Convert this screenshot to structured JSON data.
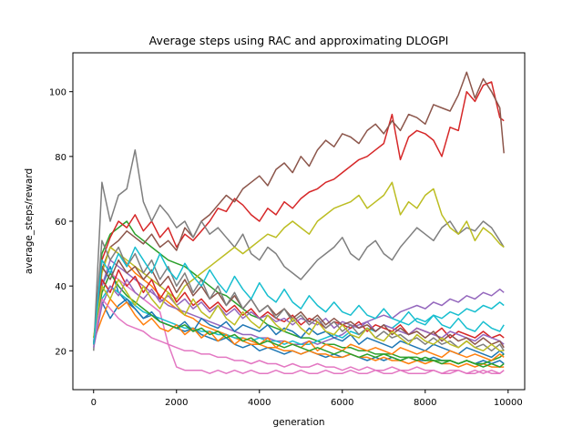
{
  "chart_data": {
    "type": "line",
    "title": "Average steps using RAC and approximating DLOGPI",
    "xlabel": "generation",
    "ylabel": "average_steps/reward",
    "xlim": [
      -500,
      10400
    ],
    "ylim": [
      8,
      112
    ],
    "xticks": [
      0,
      2000,
      4000,
      6000,
      8000,
      10000
    ],
    "yticks": [
      20,
      40,
      60,
      80,
      100
    ],
    "grid": false,
    "legend": "none",
    "x": [
      0,
      200,
      400,
      600,
      800,
      1000,
      1200,
      1400,
      1600,
      1800,
      2000,
      2200,
      2400,
      2600,
      2800,
      3000,
      3200,
      3400,
      3600,
      3800,
      4000,
      4200,
      4400,
      4600,
      4800,
      5000,
      5200,
      5400,
      5600,
      5800,
      6000,
      6200,
      6400,
      6600,
      6800,
      7000,
      7200,
      7400,
      7600,
      7800,
      8000,
      8200,
      8400,
      8600,
      8800,
      9000,
      9200,
      9400,
      9600,
      9800,
      9900
    ],
    "colors": [
      "#1f77b4",
      "#ff7f0e",
      "#2ca02c",
      "#d62728",
      "#9467bd",
      "#8c564b",
      "#e377c2",
      "#7f7f7f",
      "#bcbd22",
      "#17becf"
    ],
    "series": [
      {
        "values": [
          22,
          40,
          46,
          38,
          35,
          33,
          30,
          31,
          29,
          28,
          27,
          26,
          27,
          25,
          24,
          23,
          24,
          22,
          21,
          22,
          20,
          21,
          20,
          19,
          20,
          19,
          20,
          19,
          18,
          19,
          18,
          19,
          18,
          17,
          18,
          17,
          18,
          17,
          18,
          17,
          17,
          18,
          17,
          17,
          16,
          17,
          16,
          17,
          16,
          17,
          16
        ]
      },
      {
        "values": [
          24,
          45,
          52,
          50,
          47,
          44,
          42,
          40,
          37,
          35,
          33,
          31,
          30,
          28,
          27,
          26,
          25,
          24,
          23,
          22,
          22,
          21,
          21,
          20,
          20,
          19,
          20,
          19,
          19,
          18,
          18,
          19,
          18,
          18,
          17,
          18,
          17,
          17,
          16,
          17,
          16,
          17,
          16,
          16,
          15,
          16,
          15,
          16,
          15,
          15,
          15
        ]
      },
      {
        "values": [
          22,
          50,
          56,
          58,
          60,
          56,
          54,
          52,
          50,
          48,
          47,
          46,
          44,
          42,
          40,
          38,
          37,
          35,
          33,
          31,
          30,
          28,
          27,
          26,
          25,
          24,
          24,
          23,
          22,
          22,
          21,
          21,
          20,
          20,
          19,
          19,
          19,
          18,
          18,
          18,
          17,
          17,
          17,
          17,
          16,
          17,
          16,
          16,
          17,
          18,
          19
        ]
      },
      {
        "values": [
          22,
          48,
          55,
          60,
          58,
          62,
          57,
          60,
          55,
          58,
          52,
          56,
          54,
          57,
          60,
          64,
          63,
          67,
          65,
          62,
          60,
          64,
          62,
          66,
          64,
          67,
          69,
          70,
          72,
          73,
          75,
          77,
          79,
          80,
          82,
          84,
          93,
          79,
          86,
          88,
          87,
          85,
          80,
          89,
          88,
          100,
          97,
          102,
          103,
          92,
          91
        ]
      },
      {
        "values": [
          23,
          40,
          48,
          46,
          44,
          42,
          40,
          38,
          36,
          34,
          33,
          32,
          31,
          30,
          29,
          28,
          27,
          26,
          25,
          25,
          24,
          24,
          23,
          23,
          22,
          22,
          23,
          22,
          23,
          24,
          25,
          27,
          28,
          29,
          30,
          31,
          30,
          32,
          33,
          34,
          33,
          35,
          34,
          36,
          35,
          37,
          36,
          38,
          37,
          39,
          38
        ]
      },
      {
        "values": [
          22,
          45,
          52,
          54,
          57,
          55,
          53,
          56,
          52,
          54,
          51,
          58,
          55,
          60,
          62,
          65,
          68,
          66,
          70,
          72,
          74,
          71,
          76,
          78,
          75,
          80,
          77,
          82,
          85,
          83,
          87,
          86,
          84,
          88,
          90,
          87,
          91,
          88,
          93,
          92,
          90,
          96,
          95,
          94,
          99,
          106,
          98,
          104,
          100,
          95,
          81
        ]
      },
      {
        "values": [
          22,
          38,
          44,
          42,
          40,
          38,
          36,
          34,
          32,
          22,
          15,
          14,
          14,
          14,
          13,
          14,
          13,
          14,
          13,
          14,
          13,
          13,
          14,
          13,
          13,
          14,
          13,
          13,
          14,
          13,
          13,
          14,
          13,
          13,
          14,
          13,
          13,
          14,
          13,
          13,
          13,
          14,
          13,
          13,
          14,
          13,
          13,
          14,
          13,
          13,
          14
        ]
      },
      {
        "values": [
          20,
          72,
          60,
          68,
          70,
          82,
          66,
          60,
          65,
          62,
          58,
          60,
          55,
          60,
          56,
          58,
          55,
          52,
          56,
          50,
          48,
          52,
          50,
          46,
          44,
          42,
          45,
          48,
          50,
          52,
          55,
          50,
          48,
          52,
          54,
          50,
          48,
          52,
          55,
          58,
          56,
          54,
          58,
          60,
          56,
          58,
          57,
          60,
          58,
          54,
          52
        ]
      },
      {
        "values": [
          22,
          44,
          52,
          50,
          48,
          46,
          44,
          42,
          40,
          38,
          36,
          40,
          42,
          44,
          46,
          48,
          50,
          52,
          50,
          52,
          54,
          56,
          55,
          58,
          60,
          58,
          56,
          60,
          62,
          64,
          65,
          66,
          68,
          64,
          66,
          68,
          72,
          62,
          66,
          64,
          68,
          70,
          62,
          58,
          56,
          60,
          54,
          58,
          56,
          53,
          52
        ]
      },
      {
        "values": [
          22,
          36,
          40,
          38,
          36,
          34,
          32,
          31,
          30,
          29,
          28,
          27,
          27,
          26,
          26,
          25,
          25,
          24,
          24,
          23,
          24,
          23,
          23,
          22,
          23,
          22,
          22,
          23,
          24,
          25,
          24,
          26,
          25,
          27,
          26,
          28,
          27,
          29,
          28,
          30,
          29,
          31,
          30,
          32,
          31,
          33,
          32,
          34,
          33,
          35,
          34
        ]
      },
      {
        "values": [
          22,
          35,
          30,
          34,
          36,
          33,
          30,
          32,
          29,
          28,
          27,
          29,
          26,
          30,
          28,
          27,
          29,
          26,
          28,
          27,
          26,
          28,
          25,
          27,
          26,
          24,
          27,
          25,
          26,
          24,
          23,
          25,
          22,
          24,
          23,
          22,
          21,
          23,
          22,
          21,
          20,
          22,
          21,
          20,
          19,
          21,
          20,
          19,
          18,
          20,
          19
        ]
      },
      {
        "values": [
          23,
          30,
          36,
          33,
          35,
          31,
          28,
          30,
          27,
          26,
          28,
          25,
          27,
          24,
          26,
          23,
          25,
          22,
          24,
          23,
          22,
          24,
          21,
          23,
          22,
          21,
          23,
          20,
          22,
          21,
          20,
          22,
          21,
          20,
          21,
          20,
          19,
          21,
          20,
          19,
          20,
          19,
          18,
          20,
          19,
          18,
          19,
          18,
          17,
          19,
          18
        ]
      },
      {
        "values": [
          24,
          38,
          44,
          40,
          37,
          35,
          33,
          31,
          29,
          28,
          27,
          28,
          26,
          27,
          25,
          26,
          24,
          25,
          23,
          24,
          22,
          23,
          22,
          21,
          22,
          21,
          20,
          21,
          20,
          19,
          20,
          19,
          18,
          19,
          18,
          19,
          18,
          17,
          18,
          17,
          18,
          17,
          16,
          17,
          16,
          17,
          16,
          15,
          16,
          15,
          16
        ]
      },
      {
        "values": [
          22,
          42,
          38,
          45,
          40,
          43,
          38,
          42,
          36,
          40,
          35,
          38,
          34,
          36,
          33,
          35,
          32,
          34,
          31,
          33,
          30,
          32,
          30,
          29,
          31,
          28,
          30,
          29,
          27,
          29,
          28,
          27,
          29,
          26,
          28,
          27,
          26,
          28,
          25,
          27,
          26,
          25,
          27,
          24,
          26,
          25,
          24,
          26,
          24,
          25,
          24
        ]
      },
      {
        "values": [
          21,
          34,
          40,
          37,
          42,
          38,
          36,
          39,
          35,
          37,
          34,
          36,
          33,
          35,
          32,
          34,
          31,
          33,
          30,
          32,
          30,
          31,
          29,
          30,
          28,
          30,
          29,
          28,
          30,
          27,
          29,
          28,
          27,
          29,
          26,
          28,
          27,
          26,
          25,
          27,
          26,
          25,
          24,
          26,
          25,
          24,
          23,
          25,
          24,
          23,
          22
        ]
      },
      {
        "values": [
          22,
          46,
          42,
          48,
          44,
          46,
          42,
          45,
          40,
          43,
          38,
          42,
          37,
          40,
          36,
          38,
          34,
          37,
          33,
          36,
          32,
          34,
          31,
          33,
          30,
          32,
          29,
          31,
          28,
          30,
          28,
          29,
          27,
          28,
          26,
          28,
          25,
          27,
          25,
          26,
          24,
          26,
          23,
          25,
          23,
          24,
          22,
          24,
          22,
          23,
          21
        ]
      },
      {
        "values": [
          23,
          36,
          33,
          30,
          28,
          27,
          26,
          24,
          23,
          22,
          21,
          20,
          20,
          19,
          19,
          18,
          18,
          17,
          17,
          16,
          17,
          16,
          16,
          15,
          16,
          15,
          15,
          16,
          15,
          15,
          14,
          15,
          14,
          15,
          14,
          14,
          15,
          14,
          14,
          15,
          14,
          14,
          13,
          14,
          14,
          13,
          14,
          13,
          14,
          13,
          14
        ]
      },
      {
        "values": [
          22,
          54,
          48,
          52,
          46,
          50,
          44,
          48,
          42,
          46,
          40,
          44,
          38,
          42,
          36,
          40,
          34,
          38,
          33,
          36,
          32,
          34,
          30,
          33,
          29,
          31,
          28,
          30,
          27,
          29,
          26,
          28,
          25,
          27,
          24,
          26,
          24,
          25,
          23,
          24,
          22,
          24,
          22,
          23,
          21,
          23,
          21,
          22,
          20,
          22,
          20
        ]
      },
      {
        "values": [
          24,
          40,
          36,
          42,
          38,
          34,
          40,
          36,
          33,
          38,
          34,
          31,
          36,
          32,
          30,
          34,
          30,
          28,
          32,
          29,
          27,
          31,
          28,
          26,
          30,
          27,
          25,
          29,
          26,
          25,
          28,
          25,
          24,
          27,
          24,
          23,
          26,
          24,
          22,
          25,
          23,
          22,
          24,
          22,
          21,
          23,
          21,
          20,
          22,
          20,
          20
        ]
      },
      {
        "values": [
          22,
          48,
          44,
          50,
          46,
          52,
          48,
          44,
          50,
          45,
          42,
          47,
          43,
          40,
          45,
          41,
          38,
          43,
          39,
          36,
          41,
          37,
          35,
          39,
          35,
          33,
          37,
          34,
          32,
          35,
          32,
          31,
          34,
          31,
          30,
          33,
          30,
          29,
          32,
          29,
          28,
          31,
          28,
          27,
          30,
          27,
          26,
          29,
          27,
          26,
          28
        ]
      }
    ]
  }
}
